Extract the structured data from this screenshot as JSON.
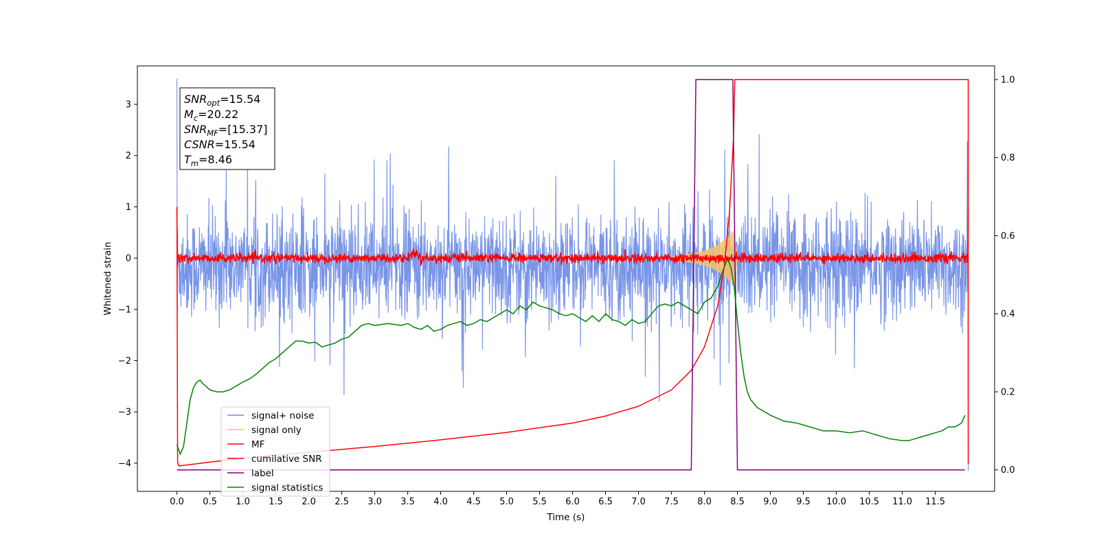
{
  "chart_data": {
    "type": "line",
    "title": "",
    "xlabel": "Time (s)",
    "ylabel": "Whitened strain",
    "y2label": "",
    "xlim": [
      -0.6,
      12.4
    ],
    "ylim": [
      -4.55,
      3.75
    ],
    "y2lim": [
      -0.055,
      1.035
    ],
    "grid": false,
    "x_ticks": [
      "0.0",
      "0.5",
      "1.0",
      "1.5",
      "2.0",
      "2.5",
      "3.0",
      "3.5",
      "4.0",
      "4.5",
      "5.0",
      "5.5",
      "6.0",
      "6.5",
      "7.0",
      "7.5",
      "8.0",
      "8.5",
      "9.0",
      "9.5",
      "10.0",
      "10.5",
      "11.0",
      "11.5"
    ],
    "y_ticks": [
      "3",
      "2",
      "1",
      "0",
      "−1",
      "−2",
      "−3",
      "−4"
    ],
    "y2_ticks": [
      "1.0",
      "0.8",
      "0.6",
      "0.4",
      "0.2",
      "0.0"
    ],
    "annotations": [
      {
        "var": "SNR",
        "sub": "opt",
        "value": "=15.54"
      },
      {
        "var": "M",
        "sub": "c",
        "value": "=20.22"
      },
      {
        "var": "SNR",
        "sub": "MF",
        "value": "=[15.37]"
      },
      {
        "var": "CSNR",
        "sub": "",
        "value": "=15.54"
      },
      {
        "var": "T",
        "sub": "m",
        "value": "=8.46"
      }
    ],
    "legend": {
      "position": "lower-left",
      "entries": [
        {
          "label": "signal+ noise",
          "color": "#6a89e6"
        },
        {
          "label": "signal only",
          "color": "#f5c36b"
        },
        {
          "label": "MF",
          "color": "#ff0000"
        },
        {
          "label": "cumilative SNR",
          "color": "#ff0000"
        },
        {
          "label": "label",
          "color": "#800080"
        },
        {
          "label": "signal statistics",
          "color": "#008000"
        }
      ]
    },
    "series": [
      {
        "name": "signal+ noise",
        "axis": "left",
        "color": "#6a89e6",
        "description_values": {
          "x_range": [
            0.0,
            12.0
          ],
          "center": -0.15,
          "typical_max": 1.25,
          "typical_min": -1.55,
          "peak_max": 3.5,
          "peak_min": -4.15
        }
      },
      {
        "name": "signal only",
        "axis": "left",
        "color": "#f5c36b",
        "x": [
          7.5,
          7.7,
          7.9,
          8.0,
          8.1,
          8.2,
          8.3,
          8.35,
          8.4,
          8.45,
          8.5
        ],
        "amplitude": [
          0.03,
          0.07,
          0.12,
          0.15,
          0.2,
          0.27,
          0.36,
          0.42,
          0.5,
          0.55,
          0.02
        ]
      },
      {
        "name": "MF",
        "axis": "left",
        "color": "#ff0000",
        "x": [
          0.0,
          3.5,
          3.6,
          3.7,
          12.0
        ],
        "center": [
          0.0,
          0.0,
          0.12,
          0.0,
          0.0
        ],
        "amplitude": 0.1
      },
      {
        "name": "cumilative SNR",
        "axis": "right",
        "color": "#ff0000",
        "x": [
          0.0,
          0.01,
          0.03,
          0.5,
          1.0,
          2.0,
          3.0,
          4.0,
          5.0,
          6.0,
          6.5,
          7.0,
          7.5,
          7.8,
          8.0,
          8.2,
          8.3,
          8.38,
          8.44,
          8.46,
          8.5,
          12.0,
          12.0
        ],
        "y": [
          0.67,
          0.02,
          0.01,
          0.02,
          0.03,
          0.045,
          0.06,
          0.077,
          0.096,
          0.12,
          0.138,
          0.163,
          0.205,
          0.255,
          0.315,
          0.42,
          0.52,
          0.66,
          0.85,
          1.0,
          1.0,
          1.0,
          0.015
        ]
      },
      {
        "name": "label",
        "axis": "right",
        "color": "#800080",
        "x": [
          0.0,
          7.8,
          7.87,
          8.43,
          8.5,
          11.95
        ],
        "y": [
          0.0,
          0.0,
          1.0,
          1.0,
          0.0,
          0.0
        ]
      },
      {
        "name": "signal statistics",
        "axis": "right",
        "color": "#008000",
        "x": [
          0.0,
          0.05,
          0.1,
          0.15,
          0.2,
          0.25,
          0.3,
          0.35,
          0.4,
          0.5,
          0.6,
          0.7,
          0.8,
          0.9,
          1.0,
          1.1,
          1.2,
          1.3,
          1.4,
          1.5,
          1.6,
          1.7,
          1.8,
          1.9,
          2.0,
          2.1,
          2.2,
          2.3,
          2.4,
          2.5,
          2.6,
          2.7,
          2.8,
          2.9,
          3.0,
          3.2,
          3.4,
          3.5,
          3.6,
          3.7,
          3.8,
          3.9,
          4.0,
          4.1,
          4.2,
          4.3,
          4.4,
          4.5,
          4.6,
          4.7,
          4.8,
          4.9,
          5.0,
          5.1,
          5.2,
          5.3,
          5.4,
          5.5,
          5.6,
          5.7,
          5.8,
          5.9,
          6.0,
          6.1,
          6.2,
          6.3,
          6.4,
          6.5,
          6.6,
          6.7,
          6.8,
          6.9,
          7.0,
          7.1,
          7.2,
          7.3,
          7.4,
          7.5,
          7.6,
          7.7,
          7.8,
          7.9,
          8.0,
          8.1,
          8.2,
          8.3,
          8.35,
          8.4,
          8.45,
          8.5,
          8.55,
          8.6,
          8.65,
          8.7,
          8.8,
          8.9,
          9.0,
          9.2,
          9.4,
          9.6,
          9.8,
          10.0,
          10.2,
          10.4,
          10.6,
          10.8,
          11.0,
          11.1,
          11.2,
          11.3,
          11.4,
          11.5,
          11.6,
          11.7,
          11.8,
          11.9,
          11.95
        ],
        "y": [
          0.065,
          0.04,
          0.06,
          0.12,
          0.18,
          0.21,
          0.225,
          0.23,
          0.22,
          0.205,
          0.2,
          0.2,
          0.205,
          0.215,
          0.225,
          0.233,
          0.245,
          0.26,
          0.275,
          0.285,
          0.3,
          0.315,
          0.33,
          0.33,
          0.325,
          0.327,
          0.315,
          0.32,
          0.325,
          0.335,
          0.34,
          0.355,
          0.37,
          0.375,
          0.37,
          0.375,
          0.37,
          0.375,
          0.365,
          0.36,
          0.37,
          0.355,
          0.36,
          0.37,
          0.375,
          0.38,
          0.37,
          0.375,
          0.385,
          0.38,
          0.39,
          0.4,
          0.41,
          0.4,
          0.42,
          0.41,
          0.43,
          0.42,
          0.415,
          0.41,
          0.4,
          0.395,
          0.4,
          0.39,
          0.38,
          0.395,
          0.38,
          0.4,
          0.385,
          0.38,
          0.37,
          0.385,
          0.375,
          0.38,
          0.4,
          0.42,
          0.425,
          0.42,
          0.43,
          0.42,
          0.41,
          0.4,
          0.43,
          0.44,
          0.47,
          0.52,
          0.54,
          0.52,
          0.47,
          0.38,
          0.3,
          0.24,
          0.2,
          0.18,
          0.16,
          0.15,
          0.14,
          0.125,
          0.12,
          0.11,
          0.1,
          0.1,
          0.095,
          0.1,
          0.09,
          0.08,
          0.075,
          0.075,
          0.08,
          0.085,
          0.09,
          0.095,
          0.1,
          0.11,
          0.11,
          0.12,
          0.14
        ]
      }
    ]
  }
}
